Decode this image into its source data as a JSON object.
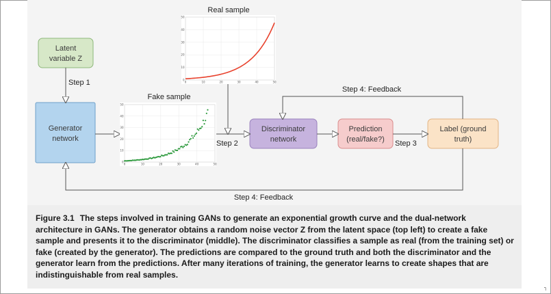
{
  "nodes": {
    "latent": {
      "line1": "Latent",
      "line2": "variable Z",
      "fill": "#d7e8c8",
      "stroke": "#8db77a"
    },
    "generator": {
      "line1": "Generator",
      "line2": "network",
      "fill": "#b3d4ee",
      "stroke": "#6d9fc9"
    },
    "discriminator": {
      "line1": "Discriminator",
      "line2": "network",
      "fill": "#c6b3de",
      "stroke": "#9a82bd"
    },
    "prediction": {
      "line1": "Prediction",
      "line2": "(real/fake?)",
      "fill": "#f6cccc",
      "stroke": "#d98c8c"
    },
    "label": {
      "line1": "Label (ground",
      "line2": "truth)",
      "fill": "#fbe3c7",
      "stroke": "#e2b383"
    }
  },
  "edges": {
    "step1": "Step 1",
    "step2": "Step 2",
    "step3": "Step 3",
    "feedback_top": "Step 4: Feedback",
    "feedback_bottom": "Step 4: Feedback"
  },
  "plots": {
    "real": {
      "title": "Real sample",
      "curve_color": "#e8412c",
      "x_ticks": [
        "0",
        "10",
        "20",
        "30",
        "40",
        "50"
      ],
      "y_ticks": [
        "0",
        "10",
        "20",
        "30",
        "40",
        "50"
      ]
    },
    "fake": {
      "title": "Fake sample",
      "point_color": "#2e9a3e",
      "x_ticks": [
        "0",
        "10",
        "20",
        "30",
        "40",
        "50"
      ],
      "y_ticks": [
        "0",
        "10",
        "20",
        "30",
        "40",
        "50"
      ]
    }
  },
  "caption": {
    "figure_number": "Figure 3.1",
    "text": "The steps involved in training GANs to generate an exponential growth curve and the dual-network architecture in GANs. The generator obtains a random noise vector Z from the latent space (top left) to create a fake sample and presents it to the discriminator (middle). The discriminator classifies a sample as real (from the training set) or fake (created by the generator). The predictions are compared to the ground truth and both the discriminator and the generator learn from the predictions. After many iterations of training, the generator learns to create shapes that are indistinguishable from real samples."
  },
  "colors": {
    "line": "#555555",
    "background": "#f4f4f4"
  }
}
